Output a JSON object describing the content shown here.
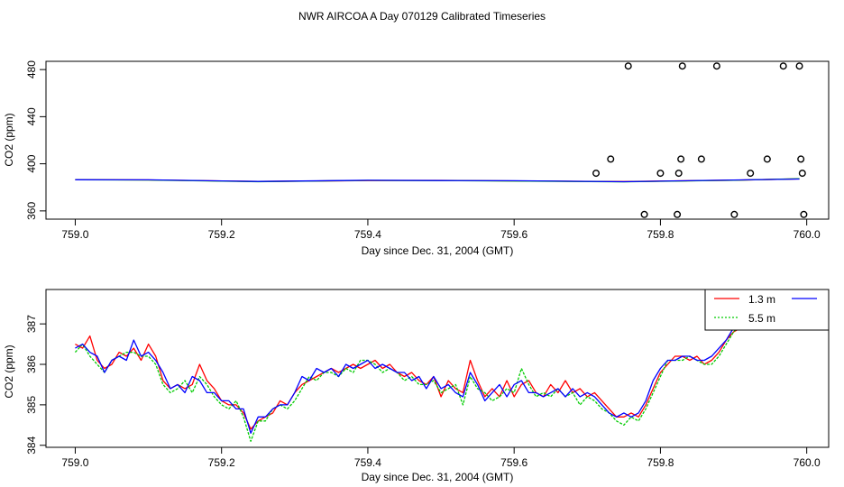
{
  "figure": {
    "title": "NWR AIRCOA A  Day 070129  Calibrated Timeseries"
  },
  "chart_data": [
    {
      "type": "scatter",
      "xlabel": "Day since Dec. 31, 2004 (GMT)",
      "ylabel": "CO2 (ppm)",
      "xlim": [
        758.96,
        760.03
      ],
      "ylim": [
        353,
        487
      ],
      "xticks": [
        {
          "v": 759.0,
          "label": "759.0"
        },
        {
          "v": 759.2,
          "label": "759.2"
        },
        {
          "v": 759.4,
          "label": "759.4"
        },
        {
          "v": 759.6,
          "label": "759.6"
        },
        {
          "v": 759.8,
          "label": "759.8"
        },
        {
          "v": 760.0,
          "label": "760.0"
        }
      ],
      "yticks": [
        {
          "v": 360,
          "label": "360"
        },
        {
          "v": 400,
          "label": "400"
        },
        {
          "v": 440,
          "label": "440"
        },
        {
          "v": 480,
          "label": "480"
        }
      ],
      "grid": false,
      "line_series": [
        {
          "color": "#ff0000",
          "x": [
            759.0,
            759.1,
            759.25,
            759.4,
            759.5,
            759.6,
            759.75,
            759.9,
            759.99
          ],
          "y": [
            386.5,
            386.3,
            385.0,
            385.8,
            385.9,
            385.5,
            384.9,
            386.1,
            387.2
          ]
        },
        {
          "color": "#00cc00",
          "x": [
            759.0,
            759.1,
            759.25,
            759.4,
            759.5,
            759.6,
            759.75,
            759.9,
            759.99
          ],
          "y": [
            386.4,
            386.2,
            384.8,
            385.9,
            385.7,
            385.4,
            384.7,
            386.0,
            387.3
          ]
        },
        {
          "color": "#0000ff",
          "x": [
            759.0,
            759.1,
            759.25,
            759.4,
            759.5,
            759.6,
            759.75,
            759.9,
            759.99
          ],
          "y": [
            386.5,
            386.4,
            385.0,
            386.0,
            385.8,
            385.6,
            384.8,
            386.2,
            387.1
          ]
        }
      ],
      "points": {
        "marker": "open-circle",
        "x": [
          759.712,
          759.732,
          759.756,
          759.778,
          759.8,
          759.823,
          759.825,
          759.828,
          759.83,
          759.856,
          759.877,
          759.901,
          759.923,
          759.946,
          759.968,
          759.99,
          759.992,
          759.994,
          759.996
        ],
        "y": [
          392,
          404,
          483,
          357,
          392,
          357,
          392,
          404,
          483,
          404,
          483,
          357,
          392,
          404,
          483,
          483,
          404,
          392,
          357
        ]
      }
    },
    {
      "type": "line",
      "xlabel": "Day since Dec. 31, 2004 (GMT)",
      "ylabel": "CO2 (ppm)",
      "xlim": [
        758.96,
        760.03
      ],
      "ylim": [
        383.95,
        387.85
      ],
      "xticks": [
        {
          "v": 759.0,
          "label": "759.0"
        },
        {
          "v": 759.2,
          "label": "759.2"
        },
        {
          "v": 759.4,
          "label": "759.4"
        },
        {
          "v": 759.6,
          "label": "759.6"
        },
        {
          "v": 759.8,
          "label": "759.8"
        },
        {
          "v": 760.0,
          "label": "760.0"
        }
      ],
      "yticks": [
        {
          "v": 384,
          "label": "384"
        },
        {
          "v": 385,
          "label": "385"
        },
        {
          "v": 386,
          "label": "386"
        },
        {
          "v": 387,
          "label": "387"
        }
      ],
      "grid": false,
      "legend": {
        "position": "top-right",
        "entries": [
          "1.3 m",
          "5.5 m"
        ]
      },
      "series": [
        {
          "name": "1.3 m",
          "color": "#ff0000",
          "x": [
            759.0,
            759.01,
            759.02,
            759.03,
            759.04,
            759.05,
            759.06,
            759.07,
            759.08,
            759.09,
            759.1,
            759.11,
            759.12,
            759.13,
            759.14,
            759.15,
            759.16,
            759.17,
            759.18,
            759.19,
            759.2,
            759.21,
            759.22,
            759.23,
            759.24,
            759.25,
            759.26,
            759.27,
            759.28,
            759.29,
            759.3,
            759.31,
            759.32,
            759.33,
            759.34,
            759.35,
            759.36,
            759.37,
            759.38,
            759.39,
            759.4,
            759.41,
            759.42,
            759.43,
            759.44,
            759.45,
            759.46,
            759.47,
            759.48,
            759.49,
            759.5,
            759.51,
            759.52,
            759.53,
            759.54,
            759.55,
            759.56,
            759.57,
            759.58,
            759.59,
            759.6,
            759.61,
            759.62,
            759.63,
            759.64,
            759.65,
            759.66,
            759.67,
            759.68,
            759.69,
            759.7,
            759.71,
            759.72,
            759.73,
            759.74,
            759.75,
            759.76,
            759.77,
            759.78,
            759.79,
            759.8,
            759.81,
            759.82,
            759.83,
            759.84,
            759.85,
            759.86,
            759.87,
            759.88,
            759.89,
            759.9,
            759.91,
            759.92,
            759.93,
            759.94,
            759.95,
            759.96,
            759.97,
            759.98,
            759.985
          ],
          "y": [
            386.5,
            386.4,
            386.7,
            386.1,
            385.9,
            386.0,
            386.3,
            386.2,
            386.4,
            386.1,
            386.5,
            386.2,
            385.6,
            385.4,
            385.5,
            385.4,
            385.5,
            386.0,
            385.6,
            385.4,
            385.1,
            385.0,
            385.0,
            384.8,
            384.4,
            384.6,
            384.7,
            384.8,
            385.1,
            385.0,
            385.3,
            385.5,
            385.6,
            385.7,
            385.8,
            385.9,
            385.8,
            385.9,
            386.0,
            385.9,
            386.0,
            386.1,
            385.9,
            386.0,
            385.8,
            385.7,
            385.8,
            385.6,
            385.5,
            385.7,
            385.2,
            385.6,
            385.4,
            385.3,
            386.1,
            385.6,
            385.2,
            385.4,
            385.2,
            385.6,
            385.2,
            385.5,
            385.6,
            385.3,
            385.2,
            385.5,
            385.3,
            385.6,
            385.3,
            385.4,
            385.2,
            385.3,
            385.1,
            384.9,
            384.7,
            384.7,
            384.8,
            384.7,
            385.0,
            385.4,
            385.8,
            386.0,
            386.2,
            386.2,
            386.1,
            386.2,
            386.0,
            386.1,
            386.3,
            386.6,
            386.8,
            386.9,
            387.2,
            387.3,
            387.4,
            387.6,
            387.6,
            387.5,
            387.2,
            387.0
          ]
        },
        {
          "name": "5.5 m",
          "color": "#00cc00",
          "x": [
            759.0,
            759.01,
            759.02,
            759.03,
            759.04,
            759.05,
            759.06,
            759.07,
            759.08,
            759.09,
            759.1,
            759.11,
            759.12,
            759.13,
            759.14,
            759.15,
            759.16,
            759.17,
            759.18,
            759.19,
            759.2,
            759.21,
            759.22,
            759.23,
            759.24,
            759.25,
            759.26,
            759.27,
            759.28,
            759.29,
            759.3,
            759.31,
            759.32,
            759.33,
            759.34,
            759.35,
            759.36,
            759.37,
            759.38,
            759.39,
            759.4,
            759.41,
            759.42,
            759.43,
            759.44,
            759.45,
            759.46,
            759.47,
            759.48,
            759.49,
            759.5,
            759.51,
            759.52,
            759.53,
            759.54,
            759.55,
            759.56,
            759.57,
            759.58,
            759.59,
            759.6,
            759.61,
            759.62,
            759.63,
            759.64,
            759.65,
            759.66,
            759.67,
            759.68,
            759.69,
            759.7,
            759.71,
            759.72,
            759.73,
            759.74,
            759.75,
            759.76,
            759.77,
            759.78,
            759.79,
            759.8,
            759.81,
            759.82,
            759.83,
            759.84,
            759.85,
            759.86,
            759.87,
            759.88,
            759.89,
            759.9,
            759.91,
            759.92,
            759.93,
            759.94,
            759.95,
            759.96,
            759.97,
            759.98,
            759.985
          ],
          "y": [
            386.3,
            386.5,
            386.2,
            386.0,
            385.8,
            386.1,
            386.2,
            386.3,
            386.3,
            386.2,
            386.2,
            386.0,
            385.5,
            385.3,
            385.4,
            385.6,
            385.3,
            385.7,
            385.5,
            385.2,
            385.0,
            384.9,
            385.1,
            384.7,
            384.1,
            384.6,
            384.6,
            384.9,
            385.0,
            384.9,
            385.1,
            385.4,
            385.7,
            385.6,
            385.8,
            385.8,
            385.7,
            385.9,
            385.8,
            386.1,
            386.1,
            386.0,
            385.8,
            385.9,
            385.8,
            385.6,
            385.7,
            385.5,
            385.5,
            385.6,
            385.3,
            385.4,
            385.5,
            385.0,
            385.7,
            385.4,
            385.3,
            385.1,
            385.2,
            385.4,
            385.3,
            385.9,
            385.5,
            385.2,
            385.3,
            385.2,
            385.4,
            385.2,
            385.3,
            385.0,
            385.2,
            385.1,
            384.9,
            384.8,
            384.6,
            384.5,
            384.7,
            384.6,
            384.9,
            385.3,
            385.7,
            386.1,
            386.1,
            386.1,
            386.2,
            386.1,
            386.0,
            386.0,
            386.2,
            386.5,
            386.8,
            387.0,
            387.1,
            387.4,
            387.5,
            387.7,
            387.4,
            387.3,
            387.1,
            387.0
          ]
        },
        {
          "name": "",
          "color": "#0000ff",
          "x": [
            759.0,
            759.01,
            759.02,
            759.03,
            759.04,
            759.05,
            759.06,
            759.07,
            759.08,
            759.09,
            759.1,
            759.11,
            759.12,
            759.13,
            759.14,
            759.15,
            759.16,
            759.17,
            759.18,
            759.19,
            759.2,
            759.21,
            759.22,
            759.23,
            759.24,
            759.25,
            759.26,
            759.27,
            759.28,
            759.29,
            759.3,
            759.31,
            759.32,
            759.33,
            759.34,
            759.35,
            759.36,
            759.37,
            759.38,
            759.39,
            759.4,
            759.41,
            759.42,
            759.43,
            759.44,
            759.45,
            759.46,
            759.47,
            759.48,
            759.49,
            759.5,
            759.51,
            759.52,
            759.53,
            759.54,
            759.55,
            759.56,
            759.57,
            759.58,
            759.59,
            759.6,
            759.61,
            759.62,
            759.63,
            759.64,
            759.65,
            759.66,
            759.67,
            759.68,
            759.69,
            759.7,
            759.71,
            759.72,
            759.73,
            759.74,
            759.75,
            759.76,
            759.77,
            759.78,
            759.79,
            759.8,
            759.81,
            759.82,
            759.83,
            759.84,
            759.85,
            759.86,
            759.87,
            759.88,
            759.89,
            759.9,
            759.91,
            759.92,
            759.93,
            759.94,
            759.95,
            759.96,
            759.97,
            759.98,
            759.985
          ],
          "y": [
            386.4,
            386.5,
            386.3,
            386.2,
            385.8,
            386.1,
            386.2,
            386.1,
            386.6,
            386.2,
            386.3,
            386.1,
            385.8,
            385.4,
            385.5,
            385.3,
            385.7,
            385.6,
            385.3,
            385.3,
            385.1,
            385.1,
            384.9,
            384.9,
            384.3,
            384.7,
            384.7,
            384.9,
            385.0,
            385.0,
            385.3,
            385.7,
            385.6,
            385.9,
            385.8,
            385.9,
            385.7,
            386.0,
            385.9,
            386.0,
            386.1,
            385.9,
            386.0,
            385.9,
            385.8,
            385.8,
            385.6,
            385.7,
            385.4,
            385.7,
            385.4,
            385.5,
            385.3,
            385.2,
            385.8,
            385.5,
            385.1,
            385.3,
            385.5,
            385.2,
            385.5,
            385.6,
            385.3,
            385.3,
            385.2,
            385.3,
            385.4,
            385.2,
            385.4,
            385.2,
            385.3,
            385.2,
            385.0,
            384.8,
            384.7,
            384.8,
            384.7,
            384.8,
            385.1,
            385.6,
            385.9,
            386.1,
            386.1,
            386.2,
            386.2,
            386.1,
            386.1,
            386.2,
            386.4,
            386.6,
            386.9,
            387.0,
            387.1,
            387.3,
            387.6,
            387.5,
            387.4,
            387.5,
            387.2,
            387.1
          ]
        }
      ]
    }
  ]
}
